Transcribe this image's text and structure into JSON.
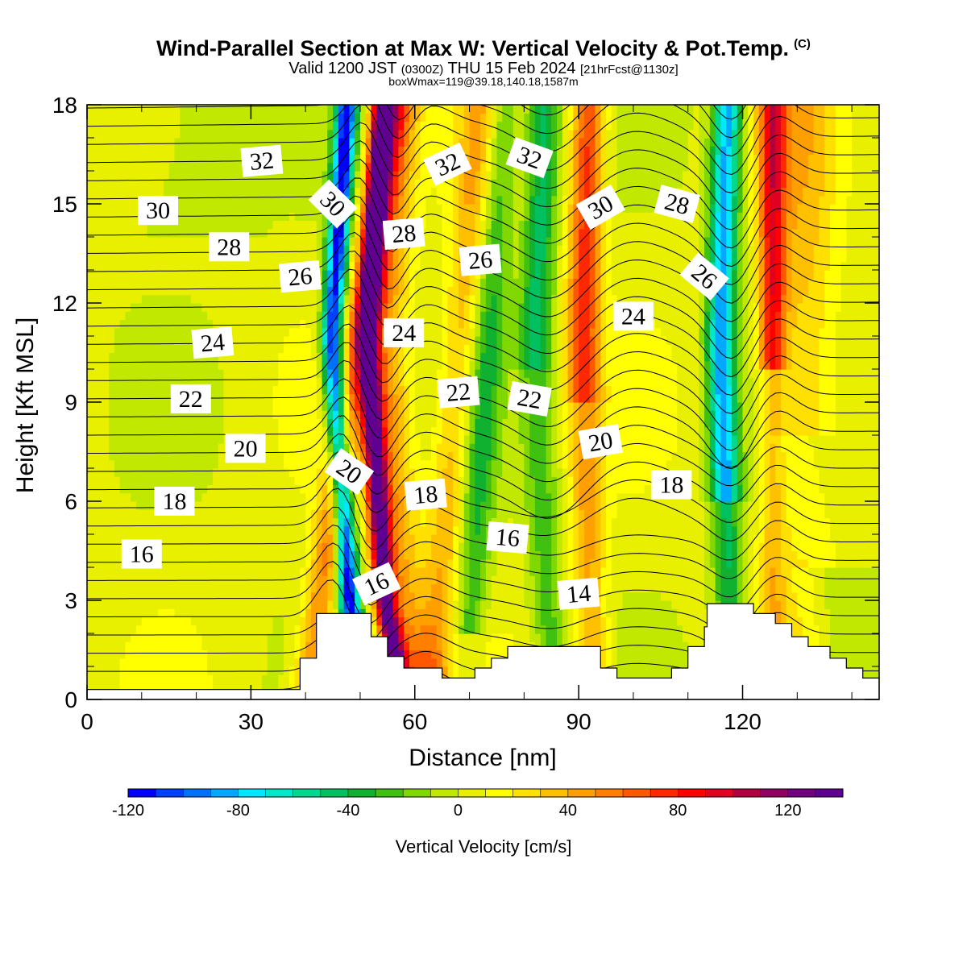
{
  "chart_data": {
    "type": "heatmap",
    "title": "Wind-Parallel Section at Max W: Vertical Velocity & Pot.Temp.",
    "title_mark": "(C)",
    "subtitle_main": "Valid 1200 JST",
    "subtitle_zulu": "(0300Z)",
    "subtitle_date": "THU 15 Feb 2024",
    "subtitle_fcst": "[21hrFcst@1130z]",
    "subtitle_box": "boxWmax=119@39.18,140.18,1587m",
    "xlabel": "Distance [nm]",
    "ylabel": "Height [Kft MSL]",
    "xlim": [
      0,
      145
    ],
    "ylim": [
      0,
      18
    ],
    "xticks": [
      0,
      30,
      60,
      90,
      120
    ],
    "yticks": [
      0,
      3,
      6,
      9,
      12,
      15,
      18
    ],
    "colorbar": {
      "label": "Vertical Velocity [cm/s]",
      "range": [
        -120,
        140
      ],
      "ticks": [
        -120,
        -80,
        -40,
        0,
        40,
        80,
        120
      ],
      "colors": [
        "#0000ff",
        "#0040ff",
        "#0070ff",
        "#00a8ff",
        "#00e8ff",
        "#00e8c8",
        "#00d890",
        "#00c060",
        "#10b030",
        "#40c010",
        "#80d800",
        "#c0e800",
        "#e8f000",
        "#ffff00",
        "#ffe000",
        "#ffc000",
        "#ffa000",
        "#ff8000",
        "#ff5800",
        "#ff2800",
        "#ff0000",
        "#e00020",
        "#b00040",
        "#900060",
        "#700080",
        "#600090"
      ]
    },
    "updrafts": [
      {
        "x0": 41,
        "x1": 55,
        "w": 120
      },
      {
        "x0": 90,
        "x1": 96,
        "w": 60
      },
      {
        "x0": 124,
        "x1": 128,
        "w": 70
      }
    ],
    "downdrafts": [
      {
        "x0": 44,
        "x1": 50,
        "w": -115
      },
      {
        "x0": 83,
        "x1": 87,
        "w": -45
      },
      {
        "x0": 115,
        "x1": 119,
        "w": -90
      }
    ],
    "terrain": [
      [
        0,
        0.3
      ],
      [
        39,
        0.3
      ],
      [
        39,
        1.25
      ],
      [
        42,
        1.25
      ],
      [
        42,
        2.6
      ],
      [
        52,
        2.6
      ],
      [
        52,
        1.9
      ],
      [
        55,
        1.9
      ],
      [
        55,
        1.3
      ],
      [
        58,
        1.3
      ],
      [
        58,
        0.95
      ],
      [
        65,
        0.95
      ],
      [
        65,
        0.65
      ],
      [
        71,
        0.65
      ],
      [
        71,
        0.95
      ],
      [
        74,
        0.95
      ],
      [
        74,
        1.25
      ],
      [
        77,
        1.25
      ],
      [
        77,
        1.6
      ],
      [
        94,
        1.6
      ],
      [
        94,
        0.95
      ],
      [
        97,
        0.95
      ],
      [
        97,
        0.65
      ],
      [
        107,
        0.65
      ],
      [
        107,
        0.95
      ],
      [
        110,
        0.95
      ],
      [
        110,
        1.6
      ],
      [
        113,
        1.6
      ],
      [
        113,
        2.2
      ],
      [
        113.5,
        2.2
      ],
      [
        113.5,
        2.9
      ],
      [
        122,
        2.9
      ],
      [
        122,
        2.6
      ],
      [
        126,
        2.6
      ],
      [
        126,
        2.3
      ],
      [
        129,
        2.3
      ],
      [
        129,
        1.9
      ],
      [
        132,
        1.9
      ],
      [
        132,
        1.6
      ],
      [
        136,
        1.6
      ],
      [
        136,
        1.25
      ],
      [
        139,
        1.25
      ],
      [
        139,
        0.95
      ],
      [
        142,
        0.95
      ],
      [
        142,
        0.65
      ],
      [
        145,
        0.65
      ]
    ],
    "theta_labels": [
      {
        "text": "32",
        "x": 32,
        "y": 16.3,
        "rot": -5
      },
      {
        "text": "30",
        "x": 13,
        "y": 14.8,
        "rot": 0
      },
      {
        "text": "30",
        "x": 45,
        "y": 15.0,
        "rot": 45
      },
      {
        "text": "28",
        "x": 26,
        "y": 13.7,
        "rot": 0
      },
      {
        "text": "26",
        "x": 39,
        "y": 12.8,
        "rot": -5
      },
      {
        "text": "24",
        "x": 23,
        "y": 10.8,
        "rot": -5
      },
      {
        "text": "22",
        "x": 19,
        "y": 9.1,
        "rot": 0
      },
      {
        "text": "20",
        "x": 29,
        "y": 7.6,
        "rot": 0
      },
      {
        "text": "18",
        "x": 16,
        "y": 6.0,
        "rot": 0
      },
      {
        "text": "16",
        "x": 10,
        "y": 4.4,
        "rot": 0
      },
      {
        "text": "20",
        "x": 48,
        "y": 6.9,
        "rot": 35
      },
      {
        "text": "16",
        "x": 53,
        "y": 3.5,
        "rot": -25
      },
      {
        "text": "28",
        "x": 58,
        "y": 14.1,
        "rot": -5
      },
      {
        "text": "24",
        "x": 58,
        "y": 11.1,
        "rot": 0
      },
      {
        "text": "18",
        "x": 62,
        "y": 6.2,
        "rot": -5
      },
      {
        "text": "32",
        "x": 66,
        "y": 16.2,
        "rot": -25
      },
      {
        "text": "26",
        "x": 72,
        "y": 13.3,
        "rot": -5
      },
      {
        "text": "22",
        "x": 68,
        "y": 9.3,
        "rot": -5
      },
      {
        "text": "32",
        "x": 81,
        "y": 16.4,
        "rot": 20
      },
      {
        "text": "22",
        "x": 81,
        "y": 9.1,
        "rot": 10
      },
      {
        "text": "16",
        "x": 77,
        "y": 4.9,
        "rot": 5
      },
      {
        "text": "30",
        "x": 94,
        "y": 14.9,
        "rot": -30
      },
      {
        "text": "20",
        "x": 94,
        "y": 7.8,
        "rot": -10
      },
      {
        "text": "14",
        "x": 90,
        "y": 3.2,
        "rot": -5
      },
      {
        "text": "28",
        "x": 108,
        "y": 15.0,
        "rot": 15
      },
      {
        "text": "24",
        "x": 100,
        "y": 11.6,
        "rot": 0
      },
      {
        "text": "18",
        "x": 107,
        "y": 6.5,
        "rot": 0
      },
      {
        "text": "26",
        "x": 113,
        "y": 12.8,
        "rot": 40
      }
    ]
  }
}
